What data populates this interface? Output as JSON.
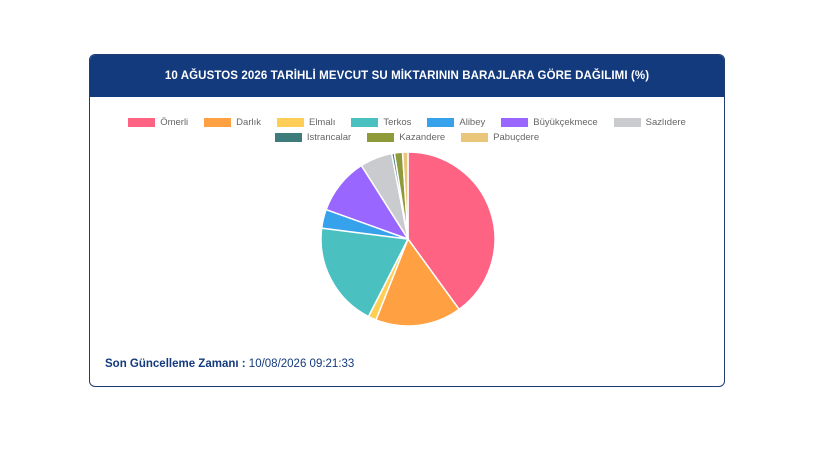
{
  "title": "10 AĞUSTOS 2026 TARİHLİ MEVCUT SU MİKTARININ BARAJLARA GÖRE DAĞILIMI (%)",
  "footer": {
    "label": "Son Güncelleme Zamanı :",
    "value": "10/08/2026 09:21:33"
  },
  "chart_data": {
    "type": "pie",
    "categories": [
      "Ömerli",
      "Darlık",
      "Elmalı",
      "Terkos",
      "Alibey",
      "Büyükçekmece",
      "Sazlıdere",
      "Istrancalar",
      "Kazandere",
      "Pabuçdere"
    ],
    "values": [
      40.0,
      16.0,
      1.5,
      19.5,
      3.5,
      10.5,
      6.0,
      0.5,
      1.5,
      1.0
    ],
    "colors": [
      "#ff6384",
      "#ffa142",
      "#ffce56",
      "#4bc0c0",
      "#36a2eb",
      "#9966ff",
      "#c9cbcf",
      "#3e7b7b",
      "#8f9b3a",
      "#e9c67a"
    ],
    "legend_position": "top"
  }
}
